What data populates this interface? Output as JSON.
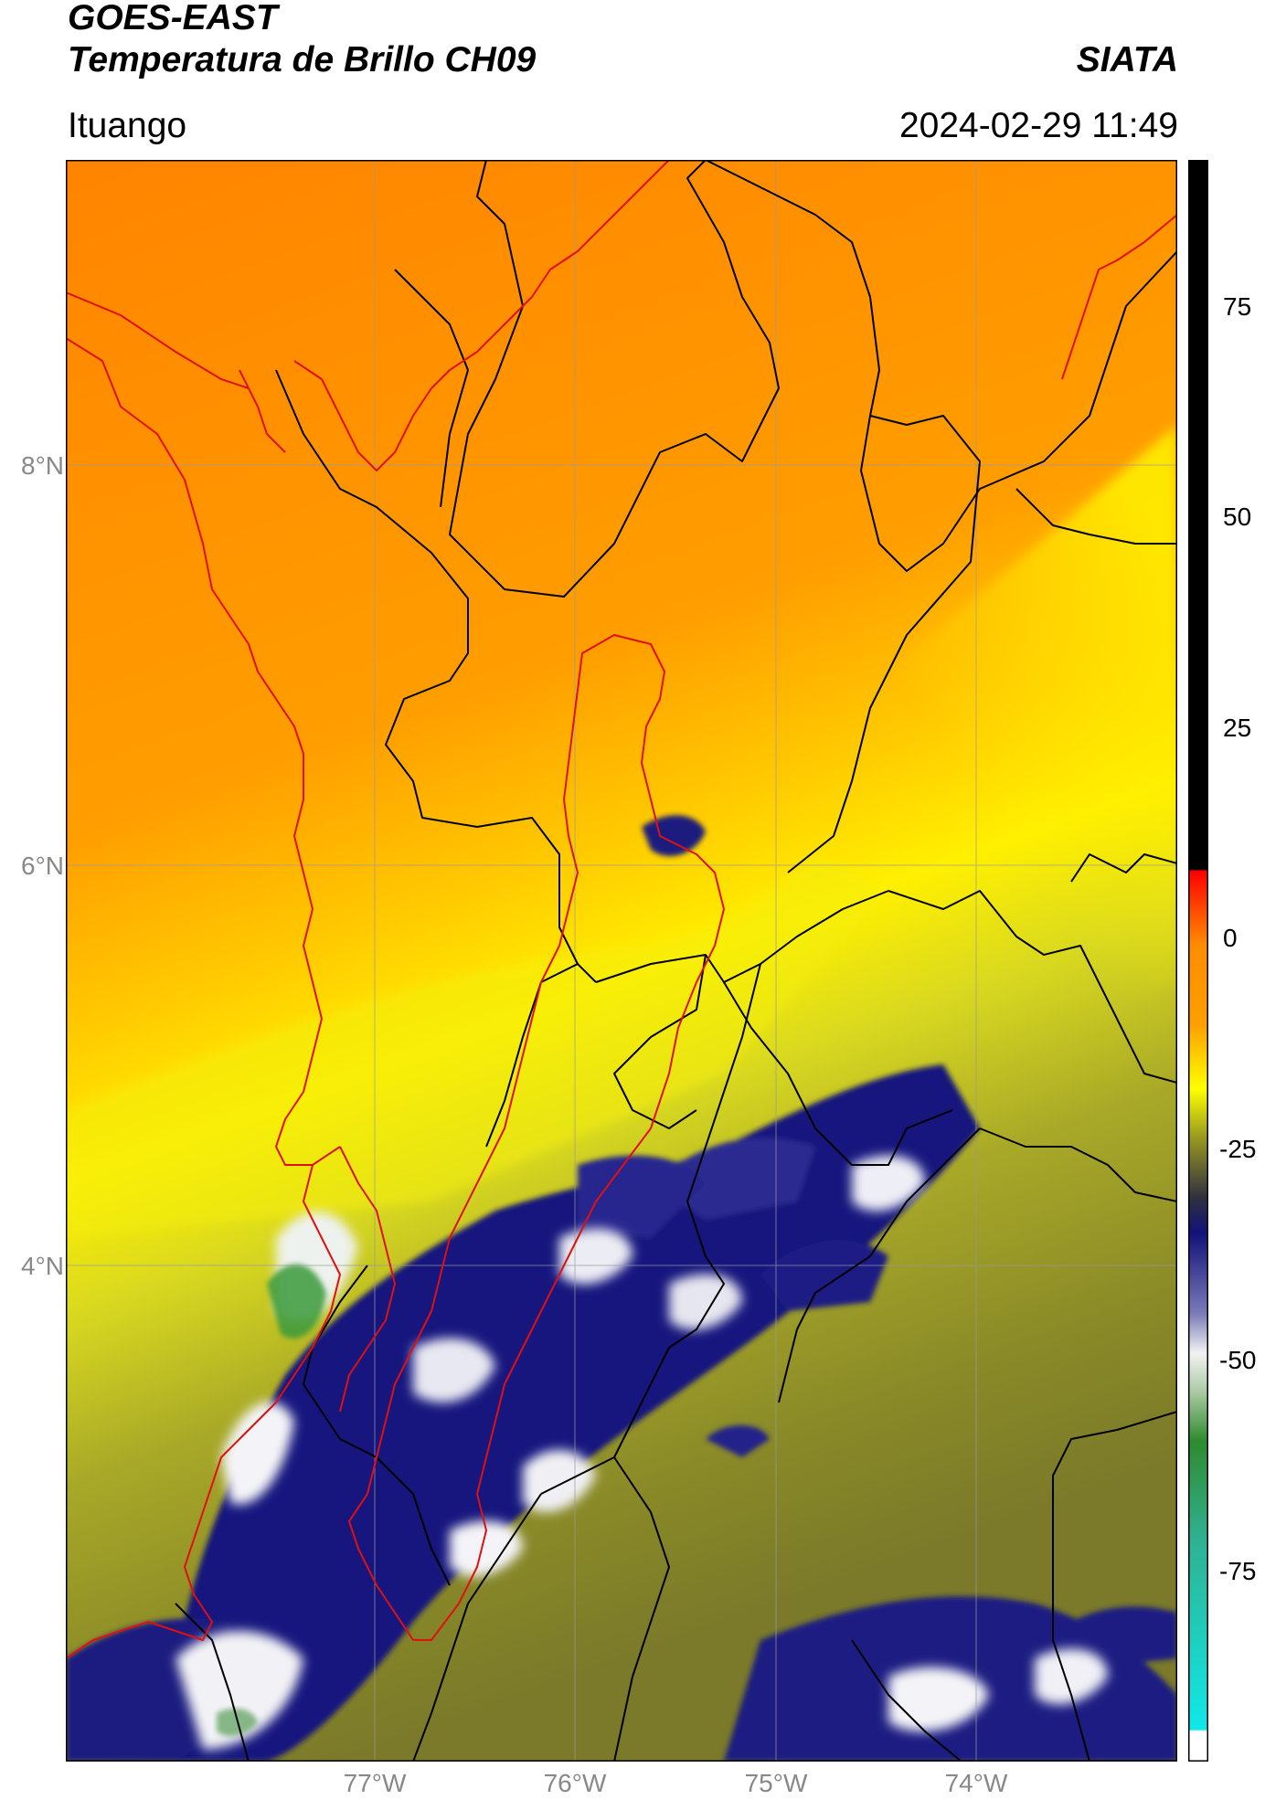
{
  "header": {
    "satellite": "GOES-EAST",
    "product": "Temperatura de Brillo CH09",
    "organization": "SIATA",
    "location": "Ituango",
    "datetime": "2024-02-29 11:49"
  },
  "map": {
    "latitude_ticks": [
      "8°N",
      "6°N",
      "4°N"
    ],
    "longitude_ticks": [
      "77°W",
      "76°W",
      "75°W",
      "74°W"
    ],
    "boundary_colors": {
      "country_and_watershed": "#e01010",
      "departments": "#000000"
    }
  },
  "colorbar": {
    "ticks": [
      "75",
      "50",
      "25",
      "0",
      "-25",
      "-50",
      "-75"
    ],
    "colors": {
      "black": "#000000",
      "red": "#ff0000",
      "orange": "#ff8c00",
      "yellow": "#ffff00",
      "olive": "#9a9a20",
      "navy": "#12127a",
      "white": "#f2f2f2",
      "green": "#2e8b2e",
      "cyan": "#10e8e8"
    }
  }
}
